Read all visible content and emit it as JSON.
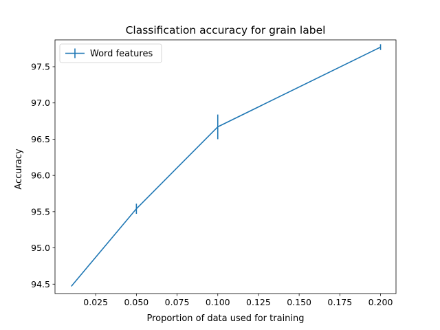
{
  "chart_data": {
    "type": "line",
    "title": "Classification accuracy for grain label",
    "xlabel": "Proportion of data used for training",
    "ylabel": "Accuracy",
    "xlim": [
      0.0,
      0.2095
    ],
    "ylim": [
      94.37,
      97.87
    ],
    "x_ticks": [
      0.025,
      0.05,
      0.075,
      0.1,
      0.125,
      0.15,
      0.175,
      0.2
    ],
    "x_tick_labels": [
      "0.025",
      "0.050",
      "0.075",
      "0.100",
      "0.125",
      "0.150",
      "0.175",
      "0.200"
    ],
    "y_ticks": [
      94.5,
      95.0,
      95.5,
      96.0,
      96.5,
      97.0,
      97.5
    ],
    "y_tick_labels": [
      "94.5",
      "95.0",
      "95.5",
      "96.0",
      "96.5",
      "97.0",
      "97.5"
    ],
    "grid": false,
    "legend_position": "top-left",
    "series": [
      {
        "name": "Word features",
        "color": "#1f77b4",
        "x": [
          0.01,
          0.05,
          0.1,
          0.2
        ],
        "y": [
          94.47,
          95.54,
          96.67,
          97.77
        ],
        "yerr": [
          0.0,
          0.07,
          0.17,
          0.04
        ]
      }
    ]
  }
}
